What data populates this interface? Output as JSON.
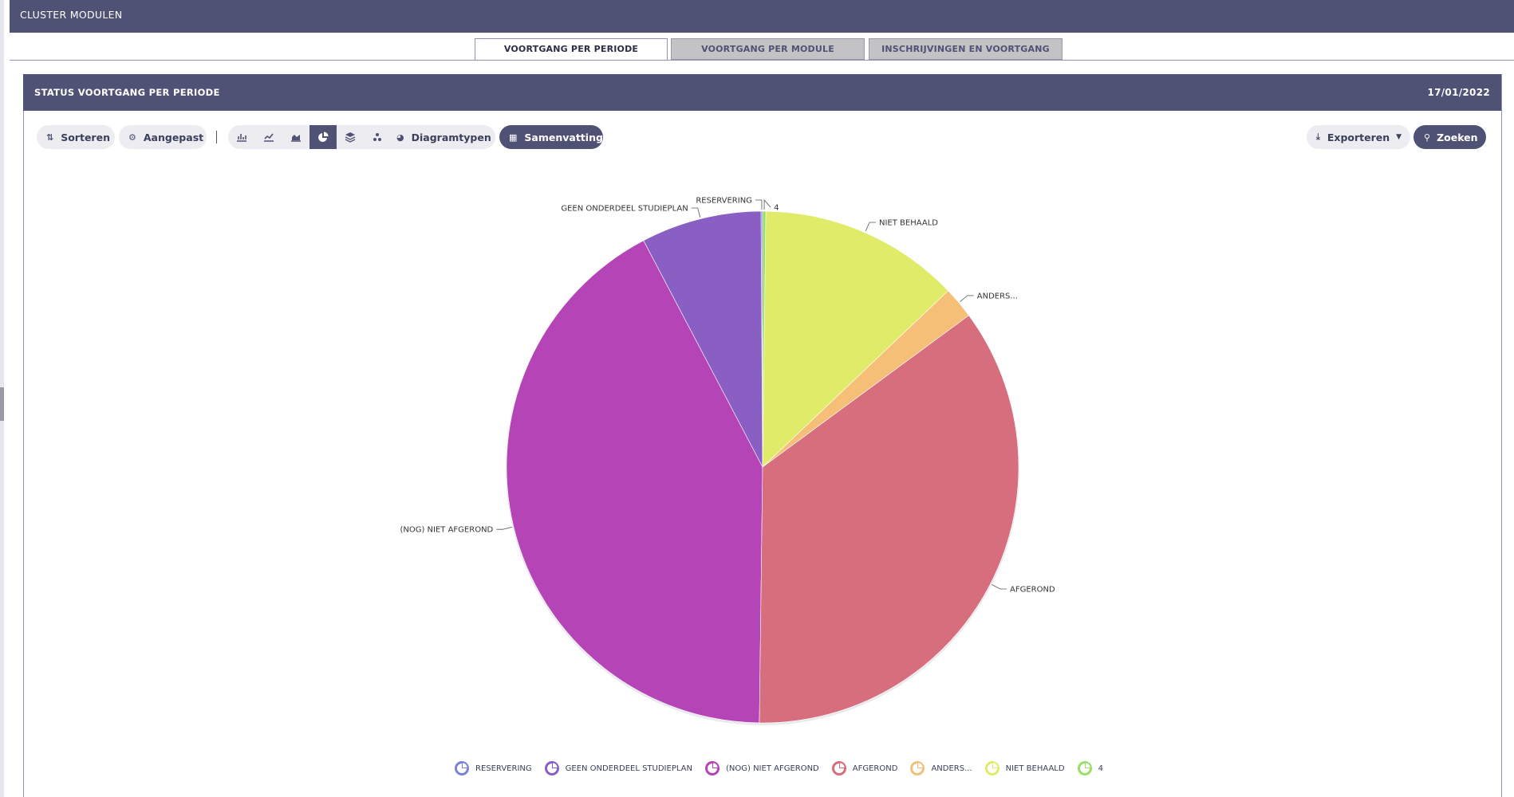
{
  "app": {
    "title": "CLUSTER MODULEN"
  },
  "tabs": [
    {
      "label": "VOORTGANG PER PERIODE",
      "active": true
    },
    {
      "label": "VOORTGANG PER MODULE",
      "active": false
    },
    {
      "label": "INSCHRIJVINGEN EN VOORTGANG",
      "active": false
    }
  ],
  "panel": {
    "title": "STATUS VOORTGANG PER PERIODE",
    "date": "17/01/2022"
  },
  "toolbar": {
    "sort_label": "Sorteren",
    "sort_icon": "sort-icon",
    "custom_label": "Aangepast",
    "custom_icon": "gear-icon",
    "chart_types": [
      {
        "icon": "bar-chart-icon",
        "active": false
      },
      {
        "icon": "line-chart-icon",
        "active": false
      },
      {
        "icon": "area-chart-icon",
        "active": false
      },
      {
        "icon": "pie-chart-icon",
        "active": true
      },
      {
        "icon": "stacked-layers-icon",
        "active": false
      },
      {
        "icon": "scatter-chart-icon",
        "active": false
      }
    ],
    "diagram_types_label": "Diagramtypen",
    "summary_label": "Samenvatting",
    "export_label": "Exporteren",
    "search_label": "Zoeken"
  },
  "colors": {
    "header_bg": "#4f5175",
    "tab_inactive_bg": "#c3c3c6",
    "button_bg": "#ececf1"
  },
  "chart_data": {
    "type": "pie",
    "title": "",
    "slices": [
      {
        "label": "RESERVERING",
        "value": 0.1,
        "color": "#7d83d4"
      },
      {
        "label": "GEEN ONDERDEEL STUDIEPLAN",
        "value": 7.6,
        "color": "#8a5fc4"
      },
      {
        "label": "(NOG) NIET AFGEROND",
        "value": 42.1,
        "color": "#b545b6"
      },
      {
        "label": "AFGEROND",
        "value": 35.3,
        "color": "#d66e7d"
      },
      {
        "label": "ANDERS...",
        "value": 2.0,
        "color": "#f5bf77"
      },
      {
        "label": "NIET BEHAALD",
        "value": 12.7,
        "color": "#e1eb6a"
      },
      {
        "label": "4",
        "value": 0.2,
        "color": "#98de68"
      }
    ],
    "start_angle_deg": 90,
    "direction": "counterclockwise",
    "legend_position": "bottom"
  }
}
